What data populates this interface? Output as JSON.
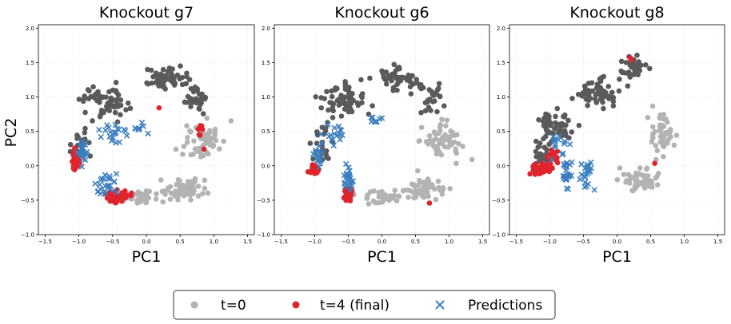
{
  "ylabel_shared": "PC2",
  "legend": {
    "t0": "t=0",
    "t4": "t=4 (final)",
    "pred": "Predictions"
  },
  "colors": {
    "t0_light": "#b3b3b3",
    "t0_dark": "#5a5a5a",
    "final": "#e0242b",
    "pred": "#3a7fbf"
  },
  "chart_data": [
    {
      "type": "scatter",
      "title": "Knockout g7",
      "xlabel": "PC1",
      "ylabel": "PC2",
      "xlim": [
        -1.6,
        1.6
      ],
      "ylim": [
        -1.0,
        2.05
      ],
      "xticks": [
        -1.5,
        -1.0,
        -0.5,
        0.0,
        0.5,
        1.0,
        1.5
      ],
      "yticks": [
        -1.0,
        -0.5,
        0.0,
        0.5,
        1.0,
        1.5,
        2.0
      ],
      "series": [
        {
          "name": "t=0",
          "clusters": [
            {
              "center": [
                -0.6,
                0.95
              ],
              "spread": [
                0.35,
                0.25
              ],
              "n": 60,
              "shade": "dark"
            },
            {
              "center": [
                0.25,
                1.25
              ],
              "spread": [
                0.3,
                0.15
              ],
              "n": 55,
              "shade": "dark"
            },
            {
              "center": [
                0.7,
                1.0
              ],
              "spread": [
                0.2,
                0.2
              ],
              "n": 30,
              "shade": "dark"
            },
            {
              "center": [
                0.85,
                0.35
              ],
              "spread": [
                0.3,
                0.25
              ],
              "n": 55,
              "shade": "light"
            },
            {
              "center": [
                0.55,
                -0.35
              ],
              "spread": [
                0.35,
                0.15
              ],
              "n": 60,
              "shade": "light"
            },
            {
              "center": [
                -0.1,
                -0.45
              ],
              "spread": [
                0.35,
                0.1
              ],
              "n": 35,
              "shade": "light"
            },
            {
              "center": [
                -0.95,
                0.3
              ],
              "spread": [
                0.15,
                0.3
              ],
              "n": 25,
              "shade": "dark"
            }
          ]
        },
        {
          "name": "t=4 (final)",
          "clusters": [
            {
              "center": [
                -1.05,
                0.1
              ],
              "spread": [
                0.06,
                0.15
              ],
              "n": 40
            },
            {
              "center": [
                -0.45,
                -0.45
              ],
              "spread": [
                0.18,
                0.08
              ],
              "n": 55
            },
            {
              "center": [
                0.8,
                0.5
              ],
              "spread": [
                0.04,
                0.08
              ],
              "n": 6
            },
            {
              "center": [
                0.2,
                0.85
              ],
              "spread": [
                0.02,
                0.02
              ],
              "n": 1
            },
            {
              "center": [
                0.85,
                0.25
              ],
              "spread": [
                0.02,
                0.02
              ],
              "n": 1
            }
          ]
        },
        {
          "name": "Predictions",
          "clusters": [
            {
              "center": [
                -0.95,
                0.25
              ],
              "spread": [
                0.08,
                0.2
              ],
              "n": 20
            },
            {
              "center": [
                -0.6,
                -0.25
              ],
              "spread": [
                0.15,
                0.15
              ],
              "n": 25
            },
            {
              "center": [
                -0.5,
                0.45
              ],
              "spread": [
                0.2,
                0.15
              ],
              "n": 20
            },
            {
              "center": [
                -0.1,
                0.55
              ],
              "spread": [
                0.1,
                0.1
              ],
              "n": 8
            }
          ]
        }
      ]
    },
    {
      "type": "scatter",
      "title": "Knockout g6",
      "xlabel": "PC1",
      "ylabel": "PC2",
      "xlim": [
        -1.6,
        1.6
      ],
      "ylim": [
        -1.0,
        2.05
      ],
      "xticks": [
        -1.5,
        -1.0,
        -0.5,
        0.0,
        0.5,
        1.0,
        1.5
      ],
      "yticks": [
        -1.0,
        -0.5,
        0.0,
        0.5,
        1.0,
        1.5,
        2.0
      ],
      "series": [
        {
          "name": "t=0",
          "clusters": [
            {
              "center": [
                -0.6,
                0.95
              ],
              "spread": [
                0.35,
                0.25
              ],
              "n": 60,
              "shade": "dark"
            },
            {
              "center": [
                0.2,
                1.25
              ],
              "spread": [
                0.3,
                0.15
              ],
              "n": 55,
              "shade": "dark"
            },
            {
              "center": [
                0.7,
                1.0
              ],
              "spread": [
                0.2,
                0.2
              ],
              "n": 30,
              "shade": "dark"
            },
            {
              "center": [
                0.9,
                0.35
              ],
              "spread": [
                0.3,
                0.25
              ],
              "n": 55,
              "shade": "light"
            },
            {
              "center": [
                0.6,
                -0.35
              ],
              "spread": [
                0.3,
                0.15
              ],
              "n": 55,
              "shade": "light"
            },
            {
              "center": [
                0.0,
                -0.45
              ],
              "spread": [
                0.3,
                0.1
              ],
              "n": 30,
              "shade": "light"
            },
            {
              "center": [
                -0.9,
                0.3
              ],
              "spread": [
                0.15,
                0.3
              ],
              "n": 25,
              "shade": "dark"
            }
          ]
        },
        {
          "name": "t=4 (final)",
          "clusters": [
            {
              "center": [
                -1.0,
                -0.05
              ],
              "spread": [
                0.06,
                0.06
              ],
              "n": 30
            },
            {
              "center": [
                -0.5,
                -0.4
              ],
              "spread": [
                0.06,
                0.1
              ],
              "n": 45
            },
            {
              "center": [
                0.7,
                -0.55
              ],
              "spread": [
                0.02,
                0.02
              ],
              "n": 1
            }
          ]
        },
        {
          "name": "Predictions",
          "clusters": [
            {
              "center": [
                -0.95,
                0.2
              ],
              "spread": [
                0.08,
                0.2
              ],
              "n": 20
            },
            {
              "center": [
                -0.5,
                -0.2
              ],
              "spread": [
                0.08,
                0.2
              ],
              "n": 25
            },
            {
              "center": [
                -0.65,
                0.45
              ],
              "spread": [
                0.15,
                0.15
              ],
              "n": 15
            },
            {
              "center": [
                -0.1,
                0.65
              ],
              "spread": [
                0.1,
                0.06
              ],
              "n": 8
            }
          ]
        }
      ]
    },
    {
      "type": "scatter",
      "title": "Knockout g8",
      "xlabel": "PC1",
      "ylabel": "PC2",
      "xlim": [
        -1.6,
        1.6
      ],
      "ylim": [
        -1.0,
        2.05
      ],
      "xticks": [
        -1.5,
        -1.0,
        -0.5,
        0.0,
        0.5,
        1.0,
        1.5
      ],
      "yticks": [
        -1.0,
        -0.5,
        0.0,
        0.5,
        1.0,
        1.5,
        2.0
      ],
      "series": [
        {
          "name": "t=0",
          "clusters": [
            {
              "center": [
                -0.9,
                0.6
              ],
              "spread": [
                0.3,
                0.25
              ],
              "n": 50,
              "shade": "dark"
            },
            {
              "center": [
                -0.3,
                1.05
              ],
              "spread": [
                0.3,
                0.2
              ],
              "n": 55,
              "shade": "dark"
            },
            {
              "center": [
                0.25,
                1.45
              ],
              "spread": [
                0.2,
                0.15
              ],
              "n": 40,
              "shade": "dark"
            },
            {
              "center": [
                0.65,
                0.45
              ],
              "spread": [
                0.15,
                0.3
              ],
              "n": 45,
              "shade": "light"
            },
            {
              "center": [
                0.35,
                -0.2
              ],
              "spread": [
                0.25,
                0.15
              ],
              "n": 50,
              "shade": "light"
            },
            {
              "center": [
                -1.1,
                0.2
              ],
              "spread": [
                0.15,
                0.25
              ],
              "n": 25,
              "shade": "dark"
            }
          ]
        },
        {
          "name": "t=4 (final)",
          "clusters": [
            {
              "center": [
                -1.15,
                -0.05
              ],
              "spread": [
                0.15,
                0.07
              ],
              "n": 45
            },
            {
              "center": [
                -0.95,
                0.15
              ],
              "spread": [
                0.08,
                0.12
              ],
              "n": 20
            },
            {
              "center": [
                0.2,
                1.55
              ],
              "spread": [
                0.03,
                0.02
              ],
              "n": 4
            },
            {
              "center": [
                0.55,
                0.05
              ],
              "spread": [
                0.02,
                0.02
              ],
              "n": 1
            }
          ]
        },
        {
          "name": "Predictions",
          "clusters": [
            {
              "center": [
                -0.75,
                -0.15
              ],
              "spread": [
                0.06,
                0.25
              ],
              "n": 25
            },
            {
              "center": [
                -0.45,
                -0.1
              ],
              "spread": [
                0.08,
                0.25
              ],
              "n": 25
            },
            {
              "center": [
                -0.8,
                0.3
              ],
              "spread": [
                0.2,
                0.2
              ],
              "n": 15
            }
          ]
        }
      ]
    }
  ]
}
